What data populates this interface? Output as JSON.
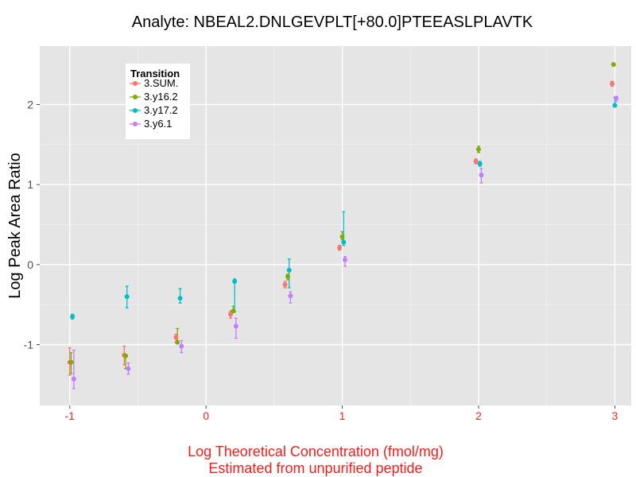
{
  "chart_data": {
    "type": "scatter",
    "title": "Analyte: NBEAL2.DNLGEVPLT[+80.0]PTEEASLPLAVTK",
    "ylabel": "Log Peak Area Ratio",
    "xlabel_line1": "Log Theoretical Concentration (fmol/mg)",
    "xlabel_line2": "Estimated from unpurified peptide",
    "xlim": [
      -1.22,
      3.12
    ],
    "ylim": [
      -1.76,
      2.73
    ],
    "x_ticks": [
      -1,
      0,
      1,
      2,
      3
    ],
    "x_tick_labels": [
      "-1",
      "0",
      "1",
      "2",
      "3"
    ],
    "y_ticks": [
      -1,
      0,
      1,
      2
    ],
    "y_tick_labels": [
      "-1",
      "0",
      "1",
      "2"
    ],
    "grid": true,
    "legend_title": "Transition",
    "legend_position": "top-left",
    "series": [
      {
        "name": "3.SUM.",
        "color": "#f8766d",
        "points": [
          {
            "x": -1.0,
            "y": -1.22,
            "lo": -1.38,
            "hi": -1.04
          },
          {
            "x": -0.6,
            "y": -1.13,
            "lo": -1.25,
            "hi": -1.02
          },
          {
            "x": -0.22,
            "y": -0.91,
            "lo": -0.97,
            "hi": -0.87
          },
          {
            "x": 0.18,
            "y": -0.62,
            "lo": -0.67,
            "hi": -0.58
          },
          {
            "x": 0.58,
            "y": -0.25,
            "lo": -0.29,
            "hi": -0.21
          },
          {
            "x": 0.98,
            "y": 0.21,
            "lo": 0.18,
            "hi": 0.24
          },
          {
            "x": 1.98,
            "y": 1.29,
            "lo": 1.26,
            "hi": 1.32
          },
          {
            "x": 2.98,
            "y": 2.26,
            "lo": 2.23,
            "hi": 2.29
          }
        ]
      },
      {
        "name": "3.y16.2",
        "color": "#7cae00",
        "points": [
          {
            "x": -0.99,
            "y": -1.22,
            "lo": -1.36,
            "hi": -1.1
          },
          {
            "x": -0.59,
            "y": -1.14,
            "lo": -1.3,
            "hi": -1.12
          },
          {
            "x": -0.21,
            "y": -0.97,
            "lo": -0.99,
            "hi": -0.8
          },
          {
            "x": 0.2,
            "y": -0.58,
            "lo": -0.6,
            "hi": -0.52
          },
          {
            "x": 0.6,
            "y": -0.15,
            "lo": -0.19,
            "hi": -0.12
          },
          {
            "x": 1.0,
            "y": 0.35,
            "lo": 0.31,
            "hi": 0.41
          },
          {
            "x": 2.0,
            "y": 1.44,
            "lo": 1.4,
            "hi": 1.48
          },
          {
            "x": 2.99,
            "y": 2.5,
            "lo": 2.49,
            "hi": 2.52
          }
        ]
      },
      {
        "name": "3.y17.2",
        "color": "#00bfc4",
        "points": [
          {
            "x": -0.98,
            "y": -0.65,
            "lo": -0.68,
            "hi": -0.62
          },
          {
            "x": -0.58,
            "y": -0.4,
            "lo": -0.54,
            "hi": -0.27
          },
          {
            "x": -0.19,
            "y": -0.42,
            "lo": -0.48,
            "hi": -0.3
          },
          {
            "x": 0.21,
            "y": -0.21,
            "lo": -0.59,
            "hi": -0.18
          },
          {
            "x": 0.61,
            "y": -0.07,
            "lo": -0.29,
            "hi": 0.07
          },
          {
            "x": 1.01,
            "y": 0.28,
            "lo": 0.24,
            "hi": 0.66
          },
          {
            "x": 2.01,
            "y": 1.26,
            "lo": 1.23,
            "hi": 1.29
          },
          {
            "x": 3.0,
            "y": 1.99,
            "lo": 1.97,
            "hi": 2.09
          }
        ]
      },
      {
        "name": "3.y6.1",
        "color": "#c77cff",
        "points": [
          {
            "x": -0.97,
            "y": -1.43,
            "lo": -1.55,
            "hi": -1.07
          },
          {
            "x": -0.57,
            "y": -1.3,
            "lo": -1.37,
            "hi": -1.23
          },
          {
            "x": -0.18,
            "y": -1.02,
            "lo": -1.1,
            "hi": -0.95
          },
          {
            "x": 0.22,
            "y": -0.77,
            "lo": -0.92,
            "hi": -0.67
          },
          {
            "x": 0.62,
            "y": -0.39,
            "lo": -0.48,
            "hi": -0.34
          },
          {
            "x": 1.02,
            "y": 0.06,
            "lo": -0.02,
            "hi": 0.1
          },
          {
            "x": 2.02,
            "y": 1.12,
            "lo": 1.02,
            "hi": 1.2
          },
          {
            "x": 3.01,
            "y": 2.08,
            "lo": 2.04,
            "hi": 2.1
          }
        ]
      }
    ]
  }
}
